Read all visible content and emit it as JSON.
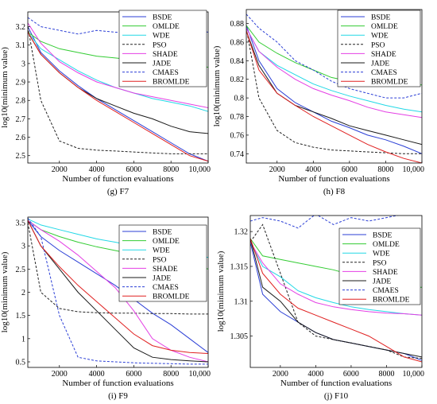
{
  "figure": {
    "legend_labels": [
      "BSDE",
      "OMLDE",
      "WDE",
      "PSO",
      "SHADE",
      "JADE",
      "CMAES",
      "BROMLDE"
    ]
  },
  "colors": {
    "BSDE": "#2b3fd6",
    "OMLDE": "#33cc33",
    "WDE": "#22d8e6",
    "PSO": "#222222",
    "SHADE": "#e43fe4",
    "JADE": "#1a1a1a",
    "CMAES": "#2b3fd6",
    "BROMLDE": "#e02020"
  },
  "chart_data": [
    {
      "type": "line",
      "caption": "(g) F7",
      "xlabel": "Number of function evaluations",
      "ylabel": "log10(minimum value)",
      "xlim": [
        300,
        10000
      ],
      "ylim": [
        2.46,
        3.28
      ],
      "xticks": [
        2000,
        4000,
        6000,
        8000,
        10000
      ],
      "xticklabels": [
        "2000",
        "4000",
        "6000",
        "8000",
        "10,000"
      ],
      "yticks": [
        2.5,
        2.6,
        2.7,
        2.8,
        2.9,
        3.0,
        3.1,
        3.2
      ],
      "yticklabels": [
        "2.5",
        "2.6",
        "2.7",
        "2.8",
        "2.9",
        "3",
        "3.1",
        "3.2"
      ],
      "legend_position": "top-right",
      "x": [
        300,
        1000,
        2000,
        3000,
        4000,
        5000,
        6000,
        7000,
        8000,
        9000,
        10000
      ],
      "series": [
        {
          "name": "BSDE",
          "dashed": false,
          "values": [
            3.2,
            3.06,
            2.96,
            2.88,
            2.81,
            2.75,
            2.69,
            2.63,
            2.57,
            2.51,
            2.47
          ]
        },
        {
          "name": "OMLDE",
          "dashed": false,
          "values": [
            3.17,
            3.12,
            3.08,
            3.06,
            3.04,
            3.03,
            3.02,
            3.01,
            3.0,
            2.99,
            2.98
          ]
        },
        {
          "name": "WDE",
          "dashed": false,
          "values": [
            3.17,
            3.08,
            3.02,
            2.96,
            2.91,
            2.87,
            2.84,
            2.81,
            2.79,
            2.77,
            2.74
          ]
        },
        {
          "name": "PSO",
          "dashed": true,
          "values": [
            3.2,
            2.8,
            2.58,
            2.54,
            2.53,
            2.525,
            2.52,
            2.515,
            2.51,
            2.51,
            2.51
          ]
        },
        {
          "name": "SHADE",
          "dashed": false,
          "values": [
            3.22,
            3.11,
            3.01,
            2.95,
            2.9,
            2.87,
            2.84,
            2.82,
            2.8,
            2.78,
            2.76
          ]
        },
        {
          "name": "JADE",
          "dashed": false,
          "values": [
            3.17,
            3.05,
            2.95,
            2.87,
            2.81,
            2.77,
            2.73,
            2.7,
            2.66,
            2.63,
            2.62
          ]
        },
        {
          "name": "CMAES",
          "dashed": true,
          "values": [
            3.25,
            3.2,
            3.18,
            3.16,
            3.18,
            3.17,
            3.17,
            3.16,
            3.17,
            3.19,
            3.17
          ]
        },
        {
          "name": "BROMLDE",
          "dashed": false,
          "values": [
            3.17,
            3.05,
            2.95,
            2.87,
            2.8,
            2.74,
            2.68,
            2.62,
            2.56,
            2.5,
            2.47
          ]
        }
      ]
    },
    {
      "type": "line",
      "caption": "(h) F8",
      "xlabel": "Number of function evaluations",
      "ylabel": "log10(minimum value)",
      "xlim": [
        300,
        10000
      ],
      "ylim": [
        0.73,
        0.895
      ],
      "xticks": [
        2000,
        4000,
        6000,
        8000,
        10000
      ],
      "xticklabels": [
        "2000",
        "4000",
        "6000",
        "8000",
        "10,000"
      ],
      "yticks": [
        0.74,
        0.76,
        0.78,
        0.8,
        0.82,
        0.84,
        0.86,
        0.88
      ],
      "yticklabels": [
        "0.74",
        "0.76",
        "0.78",
        "0.8",
        "0.82",
        "0.84",
        "0.86",
        "0.88"
      ],
      "legend_position": "top-right",
      "x": [
        300,
        1000,
        2000,
        3000,
        4000,
        5000,
        6000,
        7000,
        8000,
        9000,
        10000
      ],
      "series": [
        {
          "name": "BSDE",
          "dashed": false,
          "values": [
            0.878,
            0.84,
            0.81,
            0.795,
            0.785,
            0.775,
            0.768,
            0.76,
            0.755,
            0.748,
            0.74
          ]
        },
        {
          "name": "OMLDE",
          "dashed": false,
          "values": [
            0.878,
            0.86,
            0.848,
            0.838,
            0.83,
            0.822,
            0.818,
            0.816,
            0.815,
            0.814,
            0.814
          ]
        },
        {
          "name": "WDE",
          "dashed": false,
          "values": [
            0.875,
            0.85,
            0.835,
            0.825,
            0.815,
            0.808,
            0.802,
            0.797,
            0.792,
            0.788,
            0.785
          ]
        },
        {
          "name": "PSO",
          "dashed": true,
          "values": [
            0.875,
            0.8,
            0.765,
            0.752,
            0.747,
            0.744,
            0.743,
            0.742,
            0.741,
            0.74,
            0.74
          ]
        },
        {
          "name": "SHADE",
          "dashed": false,
          "values": [
            0.875,
            0.85,
            0.833,
            0.82,
            0.81,
            0.803,
            0.797,
            0.79,
            0.785,
            0.782,
            0.779
          ]
        },
        {
          "name": "JADE",
          "dashed": false,
          "values": [
            0.872,
            0.835,
            0.805,
            0.792,
            0.785,
            0.778,
            0.77,
            0.765,
            0.76,
            0.755,
            0.75
          ]
        },
        {
          "name": "CMAES",
          "dashed": true,
          "values": [
            0.89,
            0.875,
            0.86,
            0.84,
            0.83,
            0.818,
            0.81,
            0.805,
            0.8,
            0.8,
            0.805
          ]
        },
        {
          "name": "BROMLDE",
          "dashed": false,
          "values": [
            0.872,
            0.83,
            0.805,
            0.792,
            0.78,
            0.77,
            0.76,
            0.75,
            0.742,
            0.735,
            0.73
          ]
        }
      ]
    },
    {
      "type": "line",
      "caption": "(i) F9",
      "xlabel": "Number of function evaluations",
      "ylabel": "log10(minimum value)",
      "xlim": [
        300,
        10000
      ],
      "ylim": [
        0.38,
        3.62
      ],
      "xticks": [
        2000,
        4000,
        6000,
        8000,
        10000
      ],
      "xticklabels": [
        "2000",
        "4000",
        "6000",
        "8000",
        "10,000"
      ],
      "yticks": [
        0.5,
        1.0,
        1.5,
        2.0,
        2.5,
        3.0,
        3.5
      ],
      "yticklabels": [
        "0.5",
        "1",
        "1.5",
        "2",
        "2.5",
        "3",
        "3.5"
      ],
      "legend_position": "top-right",
      "x": [
        300,
        1000,
        2000,
        3000,
        4000,
        5000,
        6000,
        7000,
        8000,
        9000,
        10000
      ],
      "series": [
        {
          "name": "BSDE",
          "dashed": false,
          "values": [
            3.55,
            3.2,
            2.9,
            2.65,
            2.4,
            2.15,
            1.85,
            1.55,
            1.3,
            1.0,
            0.7
          ]
        },
        {
          "name": "OMLDE",
          "dashed": false,
          "values": [
            3.55,
            3.35,
            3.2,
            3.08,
            2.98,
            2.9,
            2.82,
            2.75,
            2.68,
            2.6,
            2.5
          ]
        },
        {
          "name": "WDE",
          "dashed": false,
          "values": [
            3.58,
            3.45,
            3.35,
            3.25,
            3.15,
            3.08,
            3.0,
            2.95,
            2.88,
            2.82,
            2.75
          ]
        },
        {
          "name": "PSO",
          "dashed": true,
          "values": [
            3.5,
            2.0,
            1.65,
            1.58,
            1.56,
            1.55,
            1.55,
            1.54,
            1.54,
            1.53,
            1.53
          ]
        },
        {
          "name": "SHADE",
          "dashed": false,
          "values": [
            3.55,
            3.35,
            3.1,
            2.8,
            2.45,
            2.1,
            1.6,
            1.0,
            0.75,
            0.6,
            0.5
          ]
        },
        {
          "name": "JADE",
          "dashed": false,
          "values": [
            3.55,
            3.0,
            2.5,
            2.0,
            1.6,
            1.2,
            0.8,
            0.6,
            0.55,
            0.52,
            0.5
          ]
        },
        {
          "name": "CMAES",
          "dashed": true,
          "values": [
            3.6,
            3.2,
            1.5,
            0.6,
            0.52,
            0.5,
            0.48,
            0.47,
            0.46,
            0.45,
            0.45
          ]
        },
        {
          "name": "BROMLDE",
          "dashed": false,
          "values": [
            3.55,
            3.0,
            2.55,
            2.15,
            1.8,
            1.45,
            1.1,
            0.85,
            0.75,
            0.7,
            0.68
          ]
        }
      ]
    },
    {
      "type": "line",
      "caption": "(j) F10",
      "xlabel": "Number of function evaluations",
      "ylabel": "log10(minimum value)",
      "xlim": [
        300,
        10000
      ],
      "ylim": [
        1.3005,
        1.3223
      ],
      "xticks": [
        2000,
        4000,
        6000,
        8000,
        10000
      ],
      "xticklabels": [
        "2000",
        "4000",
        "6000",
        "8000",
        "10,000"
      ],
      "yticks": [
        1.305,
        1.31,
        1.315,
        1.32
      ],
      "yticklabels": [
        "1.305",
        "1.31",
        "1.315",
        "1.32"
      ],
      "legend_position": "top-right",
      "x": [
        300,
        1000,
        2000,
        3000,
        4000,
        5000,
        6000,
        7000,
        8000,
        9000,
        10000
      ],
      "series": [
        {
          "name": "BSDE",
          "dashed": false,
          "values": [
            1.3185,
            1.311,
            1.3085,
            1.307,
            1.3055,
            1.3045,
            1.304,
            1.3035,
            1.303,
            1.3025,
            1.3015
          ]
        },
        {
          "name": "OMLDE",
          "dashed": false,
          "values": [
            1.319,
            1.3165,
            1.316,
            1.3155,
            1.315,
            1.3145,
            1.3138,
            1.313,
            1.3125,
            1.312,
            1.312
          ]
        },
        {
          "name": "WDE",
          "dashed": false,
          "values": [
            1.3185,
            1.315,
            1.3135,
            1.3115,
            1.3105,
            1.3098,
            1.3092,
            1.3088,
            1.3085,
            1.3082,
            1.308
          ]
        },
        {
          "name": "PSO",
          "dashed": true,
          "values": [
            1.3185,
            1.321,
            1.314,
            1.307,
            1.305,
            1.3045,
            1.304,
            1.3035,
            1.303,
            1.302,
            1.3018
          ]
        },
        {
          "name": "SHADE",
          "dashed": false,
          "values": [
            1.3185,
            1.3155,
            1.3125,
            1.311,
            1.3098,
            1.3092,
            1.3088,
            1.3085,
            1.3083,
            1.3082,
            1.308
          ]
        },
        {
          "name": "JADE",
          "dashed": false,
          "values": [
            1.319,
            1.312,
            1.31,
            1.307,
            1.3055,
            1.3045,
            1.304,
            1.3035,
            1.303,
            1.3025,
            1.302
          ]
        },
        {
          "name": "CMAES",
          "dashed": true,
          "values": [
            1.3215,
            1.322,
            1.3215,
            1.3205,
            1.3225,
            1.321,
            1.322,
            1.3215,
            1.322,
            1.3225,
            1.3225
          ]
        },
        {
          "name": "BROMLDE",
          "dashed": false,
          "values": [
            1.319,
            1.314,
            1.311,
            1.309,
            1.308,
            1.307,
            1.306,
            1.305,
            1.3035,
            1.302,
            1.3013
          ]
        }
      ]
    }
  ]
}
